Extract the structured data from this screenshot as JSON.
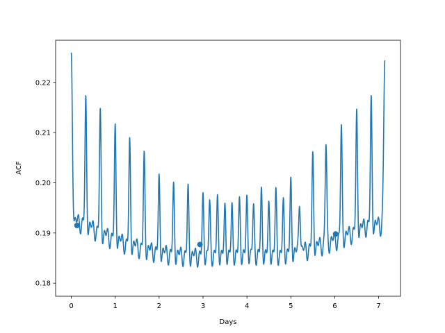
{
  "chart_data": {
    "type": "line",
    "title": "",
    "xlabel": "Days",
    "ylabel": "ACF",
    "xlim": [
      -0.357,
      7.497
    ],
    "ylim": [
      0.1774,
      0.2284
    ],
    "xticks": [
      0,
      1,
      2,
      3,
      4,
      5,
      6,
      7
    ],
    "xtick_labels": [
      "0",
      "1",
      "2",
      "3",
      "4",
      "5",
      "6",
      "7"
    ],
    "yticks": [
      0.18,
      0.19,
      0.2,
      0.21,
      0.22
    ],
    "ytick_labels": [
      "0.18",
      "0.19",
      "0.20",
      "0.21",
      "0.22"
    ],
    "grid": false,
    "series": [
      {
        "color": "#1f77b4",
        "x_range": [
          0.0,
          7.14
        ],
        "endpoints": {
          "start": 0.2254,
          "end": 0.2246
        },
        "baseline_profile": [
          [
            0.25,
            0.191
          ],
          [
            0.75,
            0.1885
          ],
          [
            1.25,
            0.1868
          ],
          [
            1.75,
            0.1855
          ],
          [
            2.25,
            0.1847
          ],
          [
            2.75,
            0.1843
          ],
          [
            3.25,
            0.1845
          ],
          [
            3.75,
            0.1846
          ],
          [
            4.25,
            0.1847
          ],
          [
            4.75,
            0.1845
          ],
          [
            5.25,
            0.1853
          ],
          [
            5.75,
            0.1867
          ],
          [
            6.25,
            0.1883
          ],
          [
            6.75,
            0.1905
          ]
        ],
        "daily_peaks": [
          [
            0.33,
            0.2168
          ],
          [
            0.66,
            0.2142
          ],
          [
            1.0,
            0.2112
          ],
          [
            1.33,
            0.2084
          ],
          [
            1.66,
            0.2057
          ],
          [
            2.0,
            0.2012
          ],
          [
            2.33,
            0.1995
          ],
          [
            2.66,
            0.1991
          ],
          [
            3.0,
            0.1975
          ],
          [
            3.15,
            0.1962
          ],
          [
            3.33,
            0.197
          ],
          [
            3.5,
            0.1954
          ],
          [
            3.66,
            0.1954
          ],
          [
            3.83,
            0.1966
          ],
          [
            4.0,
            0.197
          ],
          [
            4.15,
            0.1954
          ],
          [
            4.33,
            0.1985
          ],
          [
            4.5,
            0.1958
          ],
          [
            4.66,
            0.1984
          ],
          [
            4.83,
            0.1964
          ],
          [
            5.0,
            0.2006
          ],
          [
            5.2,
            0.198
          ],
          [
            5.5,
            0.2057
          ],
          [
            5.8,
            0.2082
          ],
          [
            6.15,
            0.2112
          ],
          [
            6.5,
            0.2142
          ],
          [
            6.83,
            0.2168
          ]
        ]
      }
    ],
    "markers": [
      {
        "x": 0.13,
        "y": 0.1915
      },
      {
        "x": 2.93,
        "y": 0.1877
      },
      {
        "x": 6.02,
        "y": 0.1898
      }
    ]
  }
}
